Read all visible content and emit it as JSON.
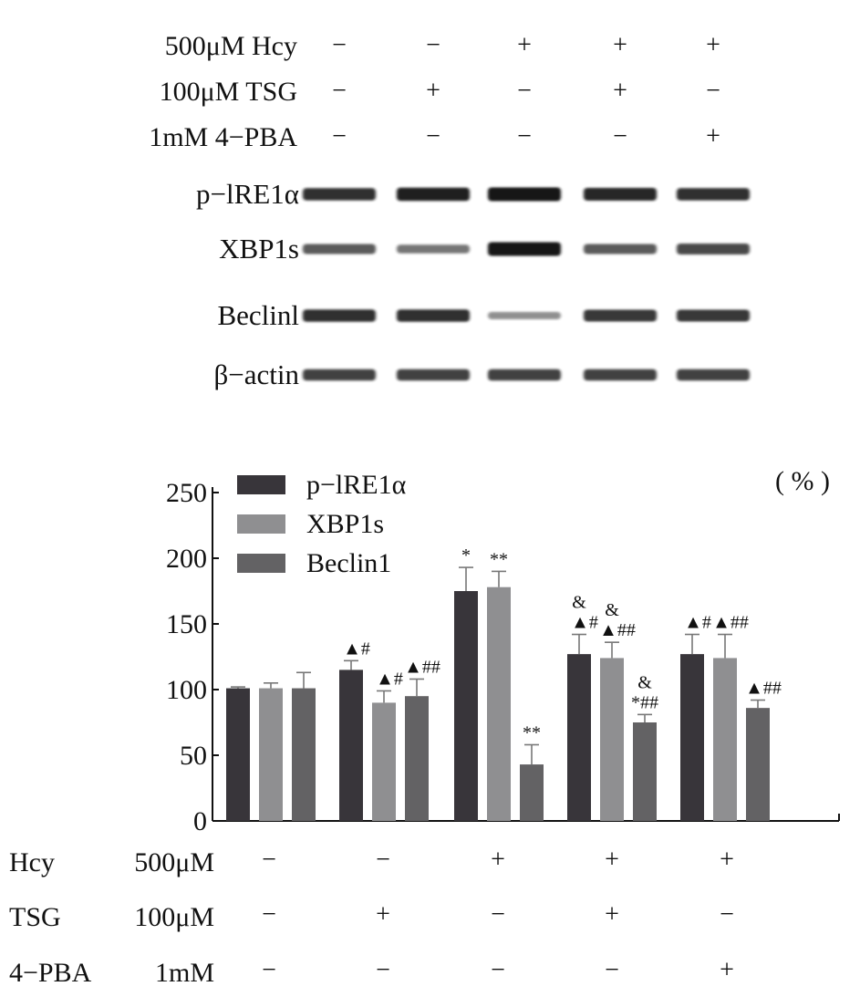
{
  "blot": {
    "conditions": [
      {
        "label": "500μM  Hcy",
        "signs": [
          "−",
          "−",
          "+",
          "+",
          "+"
        ]
      },
      {
        "label": "100μM  TSG",
        "signs": [
          "−",
          "+",
          "−",
          "+",
          "−"
        ]
      },
      {
        "label": "1mM  4−PBA",
        "signs": [
          "−",
          "−",
          "−",
          "−",
          "+"
        ]
      }
    ],
    "bands": [
      {
        "label": "p−lRE1α",
        "intensity": [
          0.85,
          0.95,
          1.0,
          0.9,
          0.85
        ]
      },
      {
        "label": "XBP1s",
        "intensity": [
          0.6,
          0.45,
          1.0,
          0.6,
          0.7
        ]
      },
      {
        "label": "Beclinl",
        "intensity": [
          0.85,
          0.85,
          0.3,
          0.8,
          0.8
        ]
      },
      {
        "label": "β−actin",
        "intensity": [
          0.75,
          0.75,
          0.75,
          0.75,
          0.75
        ]
      }
    ],
    "band_color": "#141414"
  },
  "chart_data": {
    "type": "bar",
    "unit_label": "( % )",
    "ylim": [
      0,
      250
    ],
    "yticks": [
      0,
      50,
      100,
      150,
      200,
      250
    ],
    "legend_position": "top-left",
    "series": [
      {
        "name": "p−lRE1α",
        "color": "#38353a",
        "values": [
          101,
          115,
          175,
          127,
          127
        ],
        "errors": [
          1,
          7,
          18,
          15,
          15
        ],
        "annotations": [
          "",
          "▲#",
          "*",
          "&\n▲#",
          "▲#"
        ]
      },
      {
        "name": "XBP1s",
        "color": "#8f8f91",
        "values": [
          101,
          90,
          178,
          124,
          124
        ],
        "errors": [
          4,
          9,
          12,
          12,
          18
        ],
        "annotations": [
          "",
          "▲#",
          "**",
          "&\n▲##",
          "▲##"
        ]
      },
      {
        "name": "Beclin1",
        "color": "#636264",
        "values": [
          101,
          95,
          43,
          75,
          86
        ],
        "errors": [
          12,
          13,
          15,
          6,
          6
        ],
        "annotations": [
          "",
          "▲##",
          "**",
          "&\n*##",
          "▲##"
        ]
      }
    ],
    "conditions": [
      {
        "label": "Hcy",
        "dose": "500μM",
        "signs": [
          "−",
          "−",
          "+",
          "+",
          "+"
        ]
      },
      {
        "label": "TSG",
        "dose": "100μM",
        "signs": [
          "−",
          "+",
          "−",
          "+",
          "−"
        ]
      },
      {
        "label": "4−PBA",
        "dose": "1mM",
        "signs": [
          "−",
          "−",
          "−",
          "−",
          "+"
        ]
      }
    ]
  }
}
